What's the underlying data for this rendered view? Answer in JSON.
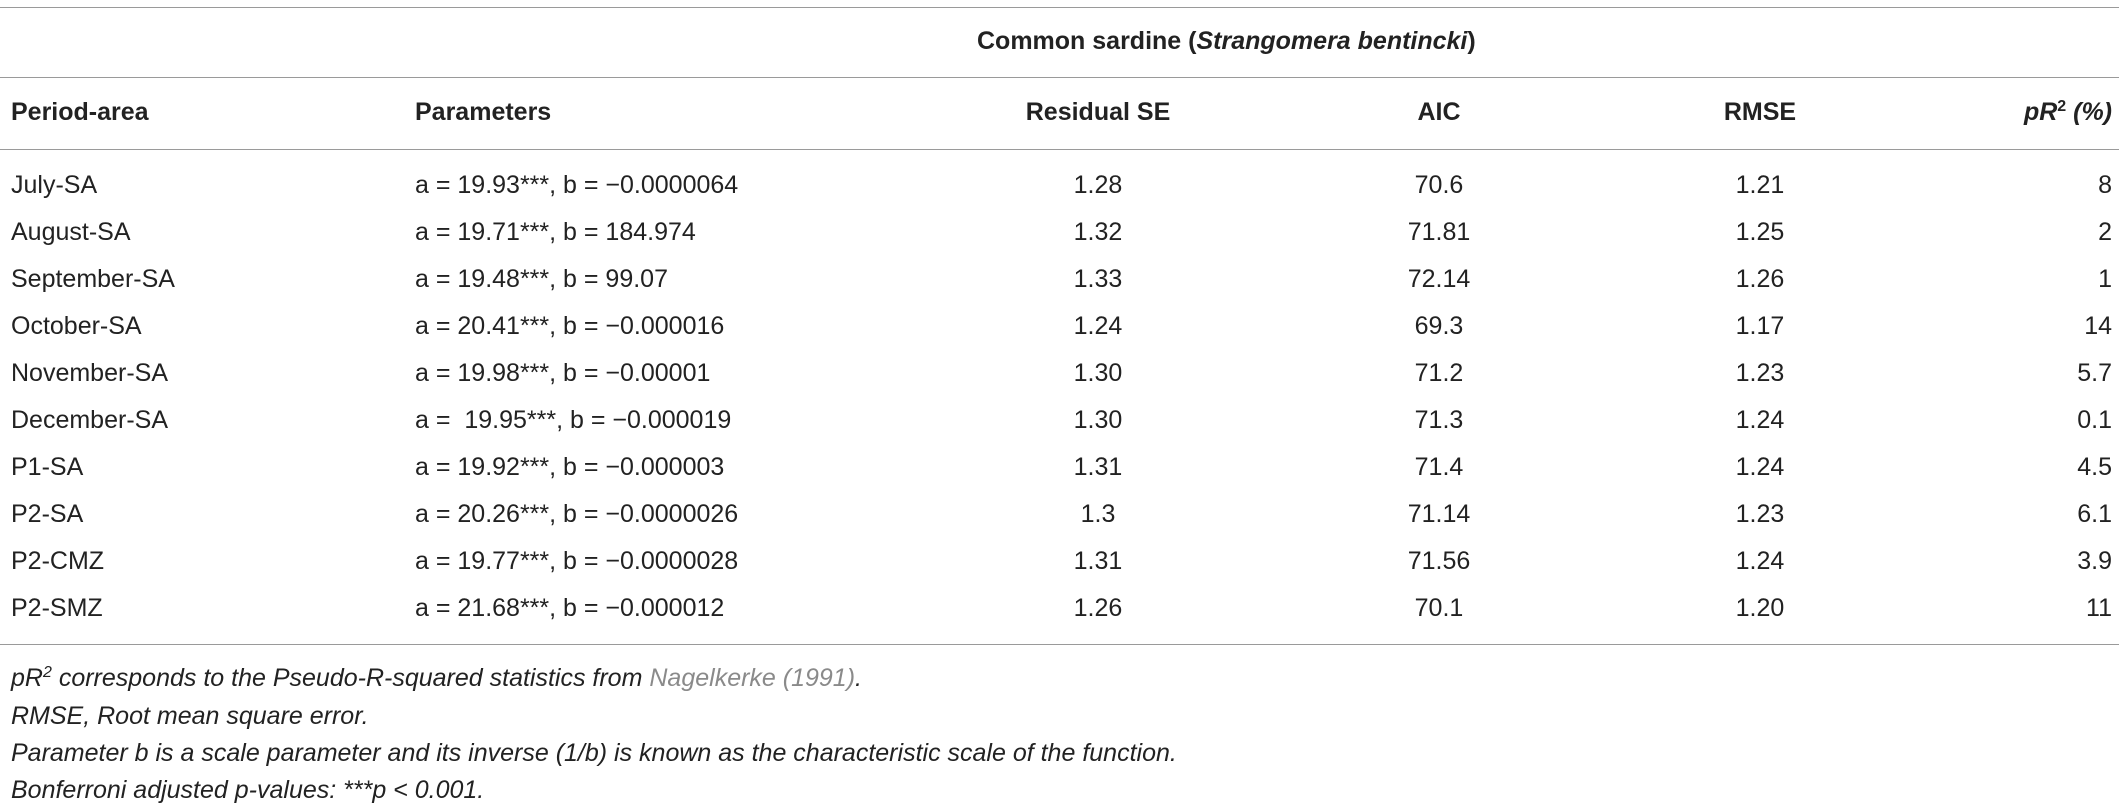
{
  "table": {
    "group_header": [
      "Common sardine (",
      "Strangomera bentincki",
      ")"
    ],
    "columns": [
      "Period-area",
      "Parameters",
      "Residual SE",
      "AIC",
      "RMSE",
      [
        "pR",
        "2",
        " (%)"
      ]
    ],
    "rows": [
      [
        "July-SA",
        "a = 19.93***, b = −0.0000064",
        "1.28",
        "70.6",
        "1.21",
        "8"
      ],
      [
        "August-SA",
        "a = 19.71***, b = 184.974",
        "1.32",
        "71.81",
        "1.25",
        "2"
      ],
      [
        "September-SA",
        "a = 19.48***, b = 99.07",
        "1.33",
        "72.14",
        "1.26",
        "1"
      ],
      [
        "October-SA",
        "a = 20.41***, b = −0.000016",
        "1.24",
        "69.3",
        "1.17",
        "14"
      ],
      [
        "November-SA",
        "a = 19.98***, b = −0.00001",
        "1.30",
        "71.2",
        "1.23",
        "5.7"
      ],
      [
        "December-SA",
        "a =  19.95***, b = −0.000019",
        "1.30",
        "71.3",
        "1.24",
        "0.1"
      ],
      [
        "P1-SA",
        "a = 19.92***, b = −0.000003",
        "1.31",
        "71.4",
        "1.24",
        "4.5"
      ],
      [
        "P2-SA",
        "a = 20.26***, b = −0.0000026",
        "1.3",
        "71.14",
        "1.23",
        "6.1"
      ],
      [
        "P2-CMZ",
        "a = 19.77***, b = −0.0000028",
        "1.31",
        "71.56",
        "1.24",
        "3.9"
      ],
      [
        "P2-SMZ",
        "a = 21.68***, b = −0.000012",
        "1.26",
        "70.1",
        "1.20",
        "11"
      ]
    ]
  },
  "footnotes": [
    [
      "pR",
      "2",
      " corresponds to the Pseudo-R-squared statistics from ",
      "Nagelkerke (1991)",
      "."
    ],
    "RMSE, Root mean square error.",
    "Parameter b is a scale parameter and its inverse (1/b) is known as the characteristic scale of the function.",
    "Bonferroni adjusted p-values: ***p < 0.001."
  ]
}
